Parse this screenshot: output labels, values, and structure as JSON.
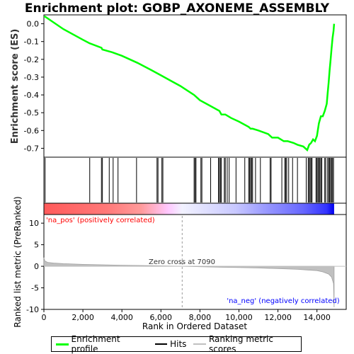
{
  "chart_data": {
    "type": "line",
    "title": "Enrichment plot: GOBP_AXONEME_ASSEMBLY",
    "top_panel": {
      "ylabel": "Enrichment score (ES)",
      "ylim": [
        -0.75,
        0.05
      ],
      "yticks": [
        0.0,
        -0.1,
        -0.2,
        -0.3,
        -0.4,
        -0.5,
        -0.6,
        -0.7
      ],
      "ytick_labels": [
        "0.0",
        "-0.1",
        "-0.2",
        "-0.3",
        "-0.4",
        "-0.5",
        "-0.6",
        "-0.7"
      ],
      "series": [
        {
          "name": "Enrichment profile",
          "color": "#00ff00",
          "x": [
            0,
            60,
            1000,
            2000,
            2350,
            2950,
            3000,
            3500,
            4000,
            4800,
            5500,
            6000,
            6500,
            7000,
            7700,
            8000,
            8500,
            9000,
            9100,
            9300,
            9600,
            10000,
            10500,
            10600,
            10700,
            11000,
            11500,
            11700,
            12000,
            12300,
            12500,
            12800,
            13000,
            13300,
            13500,
            13600,
            13700,
            13800,
            13900,
            14000,
            14100,
            14200,
            14300,
            14400,
            14500,
            14550,
            14600,
            14650,
            14700,
            14750,
            14800,
            14850,
            14880
          ],
          "y": [
            0.04,
            0.04,
            -0.03,
            -0.09,
            -0.11,
            -0.135,
            -0.145,
            -0.16,
            -0.18,
            -0.22,
            -0.26,
            -0.29,
            -0.32,
            -0.35,
            -0.4,
            -0.43,
            -0.46,
            -0.49,
            -0.51,
            -0.51,
            -0.53,
            -0.55,
            -0.58,
            -0.59,
            -0.59,
            -0.6,
            -0.62,
            -0.64,
            -0.64,
            -0.66,
            -0.66,
            -0.67,
            -0.68,
            -0.69,
            -0.71,
            -0.68,
            -0.67,
            -0.65,
            -0.66,
            -0.63,
            -0.56,
            -0.52,
            -0.52,
            -0.49,
            -0.45,
            -0.39,
            -0.33,
            -0.26,
            -0.2,
            -0.14,
            -0.08,
            -0.04,
            0.0
          ]
        }
      ]
    },
    "hits_panel": {
      "label": "Hits",
      "hit_positions": [
        60,
        2350,
        2950,
        3000,
        3350,
        3550,
        3800,
        4750,
        5800,
        5850,
        6050,
        6100,
        7700,
        7750,
        7800,
        8050,
        8100,
        8550,
        8950,
        9000,
        9050,
        9100,
        9250,
        9300,
        9400,
        9500,
        9850,
        10300,
        10500,
        10550,
        10600,
        10650,
        10700,
        10850,
        11100,
        11600,
        11650,
        12200,
        12350,
        12400,
        12450,
        12550,
        12750,
        13000,
        13450,
        13550,
        13600,
        13650,
        13700,
        13750,
        13950,
        14000,
        14050,
        14100,
        14150,
        14200,
        14250,
        14400,
        14450,
        14550,
        14600,
        14650,
        14700,
        14750,
        14800,
        14850
      ]
    },
    "bottom_panel": {
      "ylabel": "Ranked list metric (PreRanked)",
      "xlabel": "Rank in Ordered Dataset",
      "ylim": [
        -10,
        12
      ],
      "yticks": [
        10,
        5,
        0,
        -5,
        -10
      ],
      "ytick_labels": [
        "10",
        "5",
        "0",
        "-5",
        "-10"
      ],
      "metric": {
        "x": [
          0,
          50,
          200,
          500,
          1000,
          2000,
          3000,
          4000,
          5000,
          6000,
          7090,
          8000,
          9000,
          10000,
          11000,
          12000,
          13000,
          13500,
          14000,
          14300,
          14600,
          14750,
          14850,
          14880
        ],
        "y": [
          2.0,
          1.2,
          0.9,
          0.75,
          0.6,
          0.45,
          0.35,
          0.25,
          0.18,
          0.1,
          0.0,
          -0.1,
          -0.2,
          -0.3,
          -0.4,
          -0.55,
          -0.7,
          -0.85,
          -1.0,
          -1.3,
          -1.8,
          -2.5,
          -4.0,
          -9.5
        ]
      },
      "zero_cross_label": "Zero cross at 7090",
      "zero_cross": 7090,
      "pos_label": "'na_pos' (positively correlated)",
      "neg_label": "'na_neg' (negatively correlated)"
    },
    "xlim": [
      0,
      15500
    ],
    "xticks": [
      0,
      2000,
      4000,
      6000,
      8000,
      10000,
      12000,
      14000
    ],
    "xtick_labels": [
      "0",
      "2,000",
      "4,000",
      "6,000",
      "8,000",
      "10,000",
      "12,000",
      "14,000"
    ],
    "n_genes": 14880,
    "legend": [
      {
        "label": "Enrichment profile",
        "color": "#00ff00"
      },
      {
        "label": "Hits",
        "color": "#000000"
      },
      {
        "label": "Ranking metric scores",
        "color": "#c0c0c0"
      }
    ],
    "legend_placement": "bottom",
    "colors": {
      "pos": "#ff0000",
      "neg": "#0000ff",
      "pos_text": "#ff0000",
      "neg_text": "#0000ff",
      "curve": "#00ff00"
    }
  }
}
